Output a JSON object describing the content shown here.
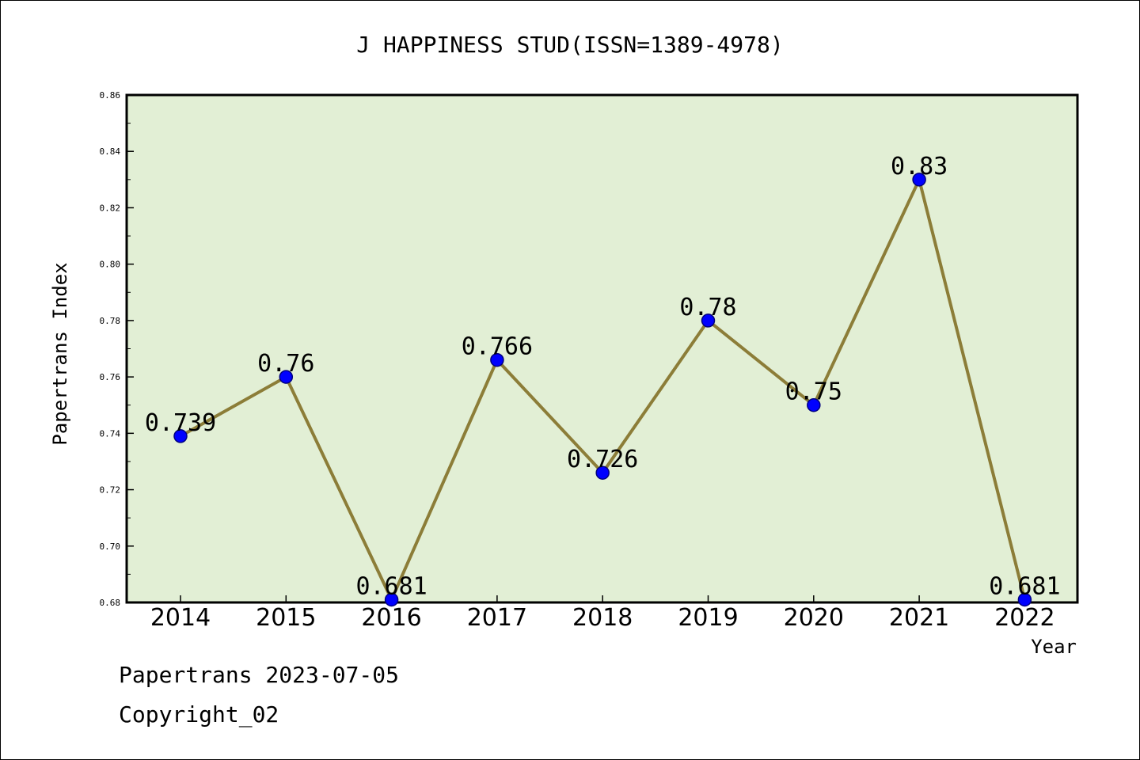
{
  "chart_data": {
    "type": "line",
    "title": "J HAPPINESS STUD(ISSN=1389-4978)",
    "xlabel": "Year",
    "ylabel": "Papertrans Index",
    "categories": [
      "2014",
      "2015",
      "2016",
      "2017",
      "2018",
      "2019",
      "2020",
      "2021",
      "2022"
    ],
    "series": [
      {
        "values": [
          0.739,
          0.76,
          0.681,
          0.766,
          0.726,
          0.78,
          0.75,
          0.83,
          0.681
        ]
      }
    ],
    "data_labels": [
      "0.739",
      "0.76",
      "0.681",
      "0.766",
      "0.726",
      "0.78",
      "0.75",
      "0.83",
      "0.681"
    ],
    "ylim": [
      0.68,
      0.86
    ],
    "yticks": [
      "0.68",
      "0.70",
      "0.72",
      "0.74",
      "0.76",
      "0.78",
      "0.80",
      "0.82",
      "0.84",
      "0.86"
    ],
    "grid": false,
    "colors": {
      "plot_background": "#e2efd5",
      "line": "#8c7d38",
      "marker": "#0000ff",
      "marker_edge": "#000080"
    }
  },
  "footer": {
    "date_text": "Papertrans 2023-07-05",
    "copyright_text": "Copyright_02"
  }
}
